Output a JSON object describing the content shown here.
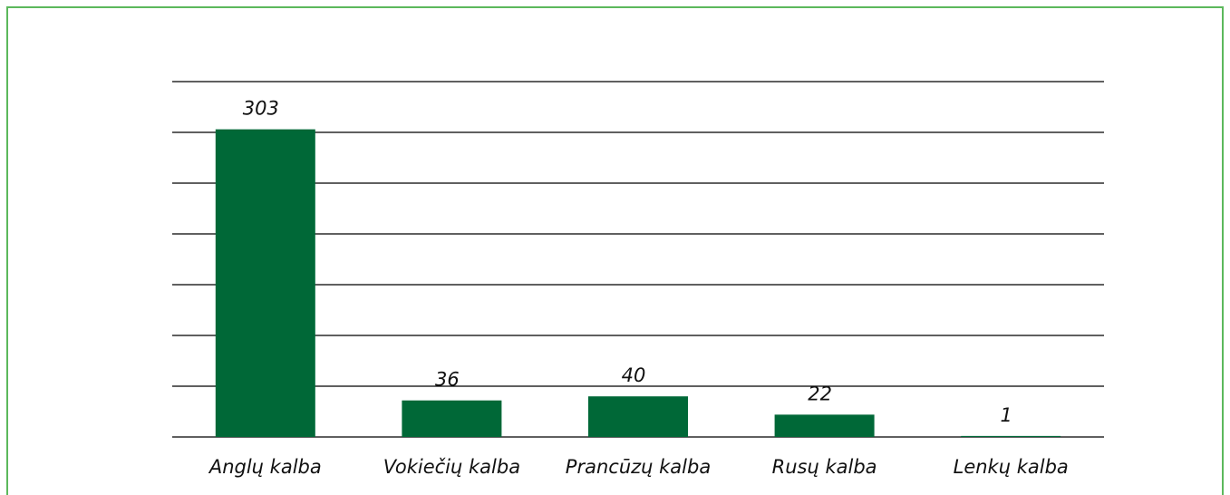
{
  "chart_data": {
    "type": "bar",
    "categories": [
      "Anglų kalba",
      "Vokiečių kalba",
      "Prancūzų kalba",
      "Rusų kalba",
      "Lenkų kalba"
    ],
    "values": [
      303,
      36,
      40,
      22,
      1
    ],
    "color": "#006837",
    "ylim": [
      0,
      350
    ],
    "yticks": [
      0,
      50,
      100,
      150,
      200,
      250,
      300,
      350
    ],
    "grid": true
  }
}
